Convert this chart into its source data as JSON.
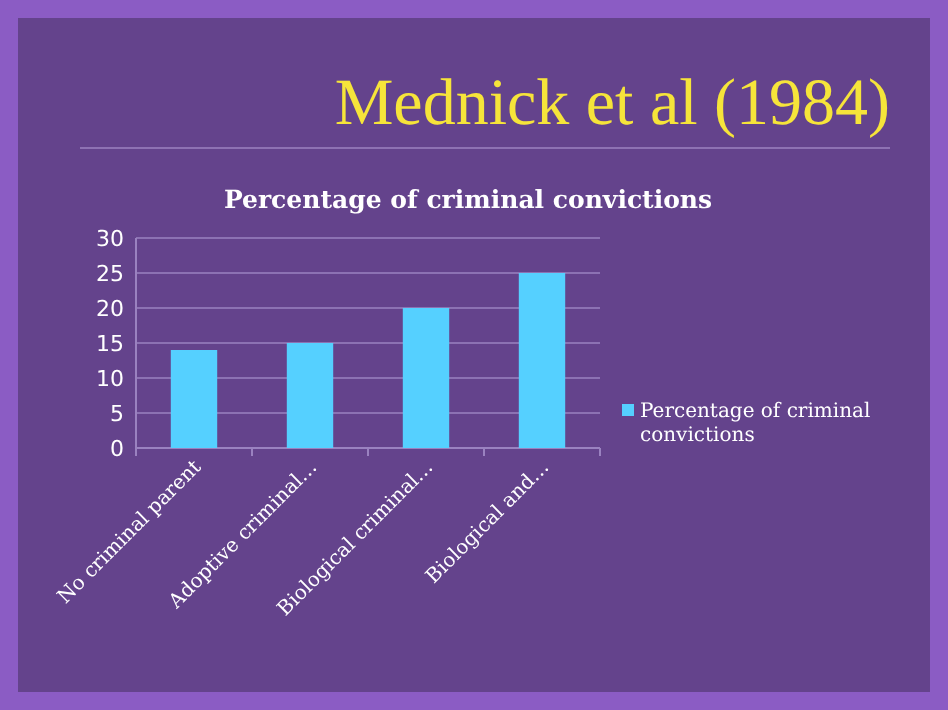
{
  "chart_data": {
    "type": "bar",
    "title": "Mednick et al (1984)",
    "subtitle": "Percentage of criminal convictions",
    "categories": [
      "No criminal parent",
      "Adoptive criminal…",
      "Biological criminal…",
      "Biological and…"
    ],
    "series": [
      {
        "name": "Percentage of criminal convictions",
        "color": "#55d0ff",
        "values": [
          14,
          15,
          20,
          25
        ]
      }
    ],
    "ylim": [
      0,
      30
    ],
    "yticks": [
      0,
      5,
      10,
      15,
      20,
      25,
      30
    ],
    "grid": "y",
    "legend": "right"
  }
}
